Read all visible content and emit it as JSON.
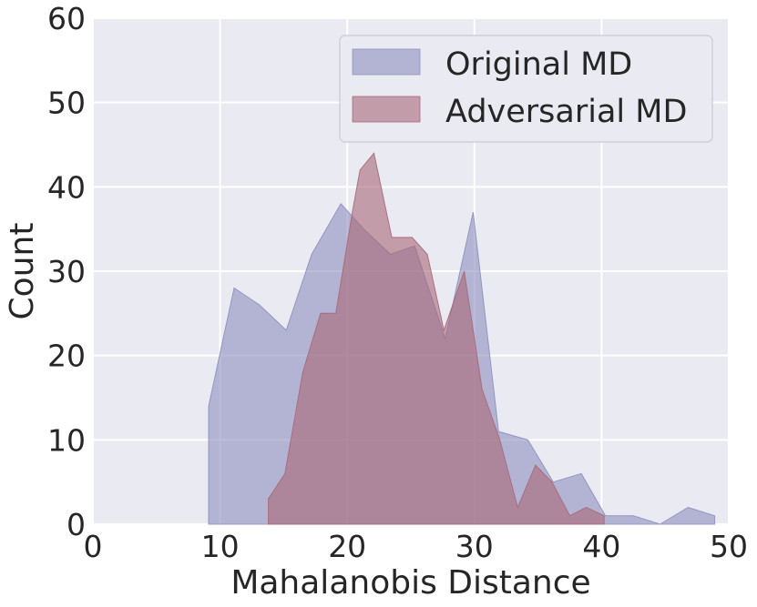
{
  "chart_data": {
    "type": "area",
    "xlabel": "Mahalanobis Distance",
    "ylabel": "Count",
    "xlim": [
      0,
      50
    ],
    "ylim": [
      0,
      60
    ],
    "xticks": [
      0,
      10,
      20,
      30,
      40,
      50
    ],
    "yticks": [
      0,
      10,
      20,
      30,
      40,
      50,
      60
    ],
    "grid": true,
    "legend_position": "top-right",
    "background": "#eaeaf2",
    "series": [
      {
        "name": "Original MD",
        "color": "#8e8fbe",
        "points": [
          [
            9.1,
            0
          ],
          [
            9.1,
            14
          ],
          [
            11.1,
            28
          ],
          [
            13.1,
            26
          ],
          [
            15.2,
            23
          ],
          [
            17.2,
            32
          ],
          [
            19.5,
            38
          ],
          [
            21.3,
            35
          ],
          [
            23.4,
            32
          ],
          [
            25.3,
            33
          ],
          [
            27.7,
            22
          ],
          [
            29.9,
            37
          ],
          [
            31.9,
            11
          ],
          [
            34.2,
            10
          ],
          [
            36.2,
            5
          ],
          [
            38.4,
            6
          ],
          [
            40.3,
            1
          ],
          [
            42.5,
            1
          ],
          [
            44.6,
            0
          ],
          [
            46.8,
            2
          ],
          [
            48.9,
            1
          ],
          [
            48.9,
            0
          ]
        ]
      },
      {
        "name": "Adversarial MD",
        "color": "#a86878",
        "points": [
          [
            13.8,
            0
          ],
          [
            13.8,
            3
          ],
          [
            15.1,
            6
          ],
          [
            16.5,
            18
          ],
          [
            17.9,
            25
          ],
          [
            19.1,
            25
          ],
          [
            20.4,
            37
          ],
          [
            21.0,
            42
          ],
          [
            22.1,
            44
          ],
          [
            23.5,
            34
          ],
          [
            25.1,
            34
          ],
          [
            26.3,
            32
          ],
          [
            27.6,
            23
          ],
          [
            29.2,
            30
          ],
          [
            30.6,
            16
          ],
          [
            32.0,
            10
          ],
          [
            33.4,
            2
          ],
          [
            34.8,
            7
          ],
          [
            36.1,
            5
          ],
          [
            37.5,
            1
          ],
          [
            38.8,
            2
          ],
          [
            40.2,
            1
          ],
          [
            40.2,
            0
          ]
        ]
      }
    ]
  }
}
